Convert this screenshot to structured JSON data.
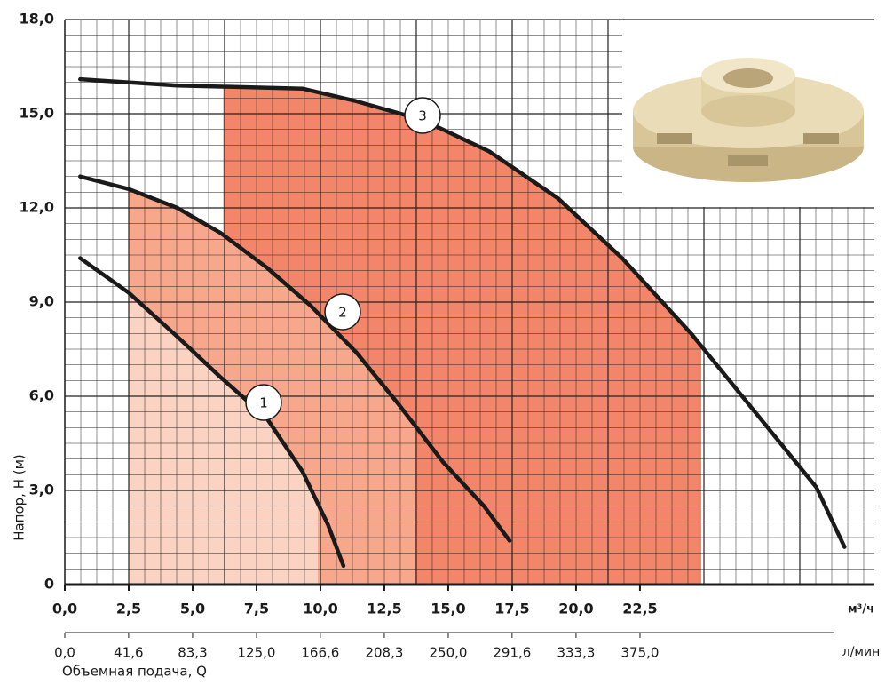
{
  "chart_data": {
    "type": "line",
    "y_label": "Напор, H (м)",
    "x_label": "Объемная подача, Q",
    "x_unit": "м³/ч",
    "x2_unit": "л/мин",
    "xlim": [
      0,
      31.67
    ],
    "ylim": [
      0,
      18
    ],
    "xticks": [
      {
        "value": 0,
        "label": "0,0"
      },
      {
        "value": 2.5,
        "label": "2,5"
      },
      {
        "value": 5,
        "label": "5,0"
      },
      {
        "value": 7.5,
        "label": "7,5"
      },
      {
        "value": 10,
        "label": "10,0"
      },
      {
        "value": 12.5,
        "label": "12,5"
      },
      {
        "value": 15,
        "label": "15,0"
      },
      {
        "value": 17.5,
        "label": "17,5"
      },
      {
        "value": 20,
        "label": "20,0"
      },
      {
        "value": 22.5,
        "label": "22,5"
      }
    ],
    "yticks": [
      0,
      {
        "value": 3,
        "label": "3,0"
      },
      {
        "value": 6,
        "label": "6,0"
      },
      {
        "value": 9,
        "label": "9,0"
      },
      {
        "value": 12,
        "label": "12,0"
      },
      {
        "value": 15,
        "label": "15,0"
      },
      {
        "value": 18,
        "label": "18,0"
      }
    ],
    "x2lim": [
      0,
      527.8
    ],
    "x2ticks": [
      {
        "value": 0,
        "label": "0,0"
      },
      {
        "value": 41.6,
        "label": "41,6"
      },
      {
        "value": 83.3,
        "label": "83,3"
      },
      {
        "value": 125,
        "label": "125,0"
      },
      {
        "value": 166.6,
        "label": "166,6"
      },
      {
        "value": 208.3,
        "label": "208,3"
      },
      {
        "value": 250,
        "label": "250,0"
      },
      {
        "value": 291.6,
        "label": "291,6"
      },
      {
        "value": 333.3,
        "label": "333,3"
      },
      {
        "value": 375,
        "label": "375,0"
      }
    ],
    "grid": true,
    "series": [
      {
        "name": "1",
        "color": "#1a1a1a",
        "fill": "#fbd3c2",
        "fill_range": [
          2.5,
          9.9
        ],
        "x": [
          0.6,
          2.5,
          4.4,
          6.1,
          7.9,
          9.3,
          10.3,
          10.9
        ],
        "values": [
          10.4,
          9.3,
          7.9,
          6.6,
          5.3,
          3.6,
          1.9,
          0.6
        ]
      },
      {
        "name": "2",
        "color": "#1a1a1a",
        "fill": "#f7a78c",
        "fill_range": [
          2.5,
          13.7
        ],
        "x": [
          0.6,
          2.5,
          4.4,
          6.1,
          7.9,
          9.6,
          11.4,
          13.1,
          14.8,
          16.4,
          17.4
        ],
        "values": [
          13.0,
          12.6,
          12.0,
          11.2,
          10.1,
          8.9,
          7.4,
          5.7,
          3.9,
          2.5,
          1.4
        ]
      },
      {
        "name": "3",
        "color": "#1a1a1a",
        "fill": "#f3866a",
        "fill_range": [
          6.2,
          24.9
        ],
        "x": [
          0.6,
          4.4,
          9.3,
          11.4,
          14.0,
          16.6,
          19.3,
          21.8,
          24.5,
          27.0,
          29.4,
          30.5
        ],
        "values": [
          16.1,
          15.9,
          15.8,
          15.4,
          14.8,
          13.8,
          12.3,
          10.4,
          8.0,
          5.5,
          3.1,
          1.2
        ]
      }
    ]
  }
}
